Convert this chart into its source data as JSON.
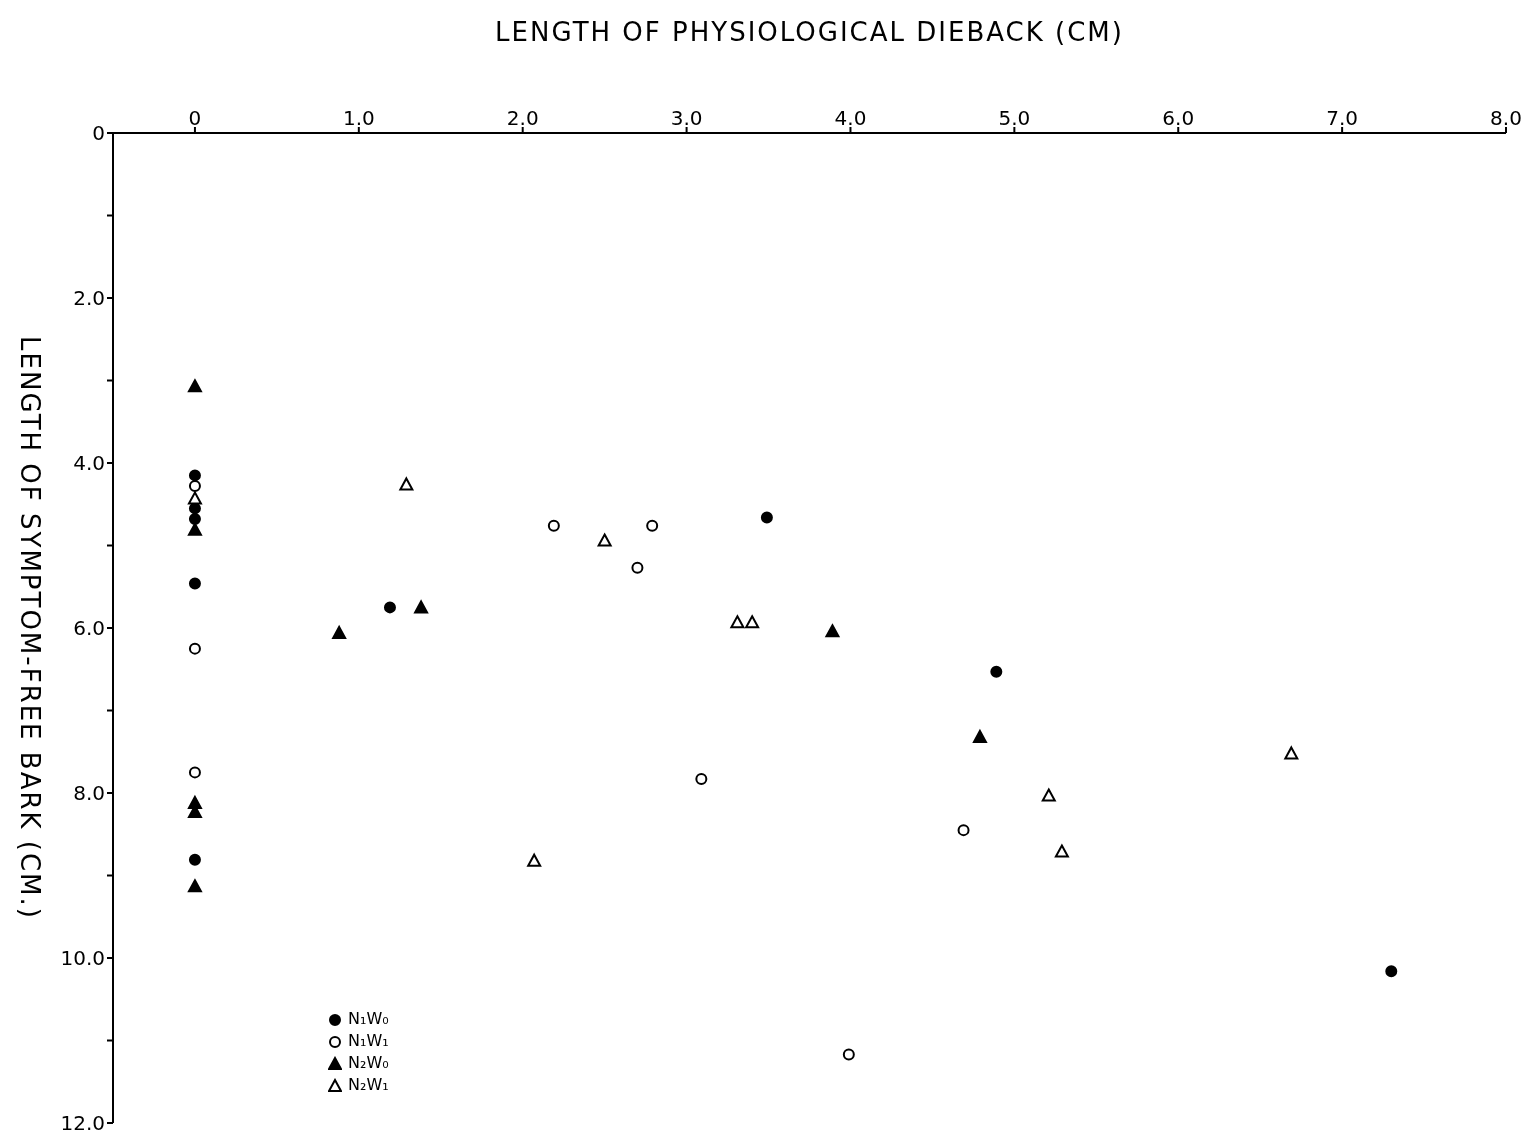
{
  "chart_data": {
    "type": "scatter",
    "xlabel": "LENGTH  OF  PHYSIOLOGICAL  DIEBACK  (CM)",
    "ylabel": "LENGTH  OF  SYMPTOM-FREE  BARK  (CM.)",
    "xlim": [
      -0.5,
      8
    ],
    "xticks": [
      0,
      {
        "value": 1,
        "label": "1.0"
      },
      {
        "value": 2,
        "label": "2.0"
      },
      {
        "value": 3,
        "label": "3.0"
      },
      {
        "value": 4,
        "label": "4.0"
      },
      {
        "value": 5,
        "label": "5.0"
      },
      {
        "value": 6,
        "label": "6.0"
      },
      {
        "value": 7,
        "label": "7.0"
      },
      {
        "value": 8,
        "label": "8.0"
      }
    ],
    "ylim": [
      12,
      0
    ],
    "yticks": [
      0,
      {
        "value": 1,
        "label": null
      },
      {
        "value": 2,
        "label": "2.0"
      },
      {
        "value": 3,
        "label": null
      },
      {
        "value": 4,
        "label": "4.0"
      },
      {
        "value": 5,
        "label": null
      },
      {
        "value": 6,
        "label": "6.0"
      },
      {
        "value": 7,
        "label": null
      },
      {
        "value": 8,
        "label": "8.0"
      },
      {
        "value": 9,
        "label": null
      },
      {
        "value": 10,
        "label": "10.0"
      },
      {
        "value": 11,
        "label": null
      },
      {
        "value": 12,
        "label": "12.0"
      }
    ],
    "grid": false,
    "legend": "bottom left",
    "series": [
      {
        "name": "N₁W₀",
        "color": "#000000",
        "marker": "circle",
        "x": [
          0,
          0,
          0,
          3.49,
          0,
          1.19,
          4.89,
          0,
          7.3
        ],
        "values": [
          4.15,
          4.55,
          4.68,
          4.66,
          5.46,
          5.75,
          6.53,
          8.81,
          10.16
        ]
      },
      {
        "name": "N₁W₁",
        "color": "#000000",
        "marker": "circle-open",
        "x": [
          0,
          2.19,
          2.79,
          2.7,
          0,
          0,
          3.09,
          4.69,
          3.99
        ],
        "values": [
          4.28,
          4.76,
          4.76,
          5.27,
          6.25,
          7.75,
          7.83,
          8.45,
          11.17
        ]
      },
      {
        "name": "N₂W₀",
        "color": "#000000",
        "marker": "triangle",
        "x": [
          0,
          0,
          1.38,
          0.88,
          3.89,
          4.79,
          0,
          0,
          0
        ],
        "values": [
          3.07,
          4.81,
          5.75,
          6.06,
          6.04,
          7.32,
          8.12,
          8.23,
          9.13
        ]
      },
      {
        "name": "N₂W₁",
        "color": "#000000",
        "marker": "triangle-open",
        "x": [
          1.29,
          0,
          2.5,
          3.31,
          3.4,
          6.69,
          5.21,
          5.29,
          2.07
        ],
        "values": [
          4.26,
          4.43,
          4.94,
          5.93,
          5.93,
          7.52,
          8.03,
          8.71,
          8.82
        ]
      }
    ]
  }
}
